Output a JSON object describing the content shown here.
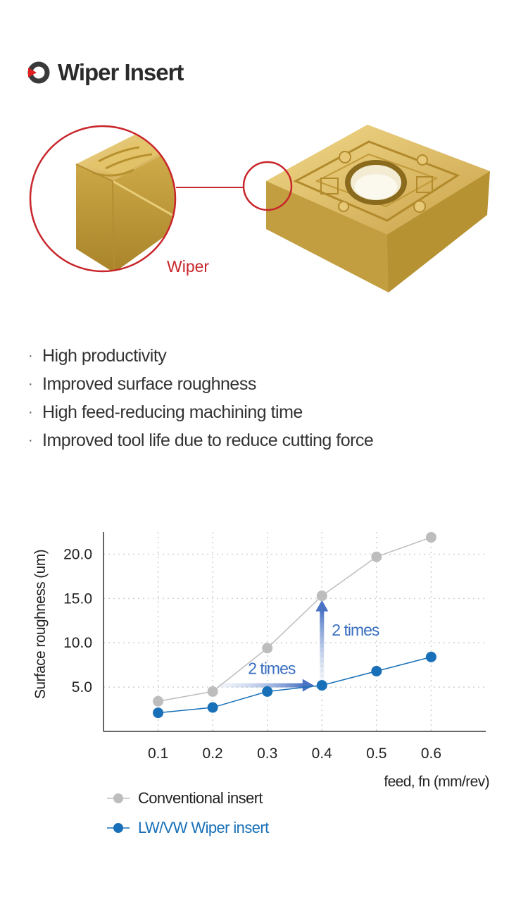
{
  "header": {
    "title": "Wiper Insert",
    "accent": "#e02020"
  },
  "hero": {
    "wiper_label": "Wiper",
    "label_color": "#c8262b",
    "circle_color": "#c8262b",
    "insert_color": "#d9b74e"
  },
  "features": [
    "High productivity",
    "Improved surface roughness",
    "High feed-reducing machining time",
    "Improved tool life due to reduce cutting force"
  ],
  "chart_data": {
    "type": "line",
    "x": [
      0.1,
      0.2,
      0.3,
      0.4,
      0.5,
      0.6
    ],
    "x_tick_labels": [
      "0.1",
      "0.2",
      "0.3",
      "0.4",
      "0.5",
      "0.6"
    ],
    "y_ticks": [
      5,
      10,
      15,
      20
    ],
    "y_tick_labels": [
      "5.0",
      "10.0",
      "15.0",
      "20.0"
    ],
    "xlim": [
      0,
      0.7
    ],
    "ylim": [
      0,
      22.5
    ],
    "xlabel": "feed, fn (mm/rev)",
    "ylabel": "Surface roughness (um)",
    "grid": true,
    "legend_position": "bottom-left",
    "series": [
      {
        "name": "Conventional insert",
        "values": [
          3.4,
          4.5,
          9.4,
          15.3,
          19.7,
          21.9
        ],
        "color": "#bdbdbd"
      },
      {
        "name": "LW/VW Wiper insert",
        "values": [
          2.1,
          2.7,
          4.5,
          5.2,
          6.8,
          8.4
        ],
        "color": "#1870b8"
      }
    ],
    "annotations": [
      {
        "text": "2 times",
        "from": [
          0.21,
          5.2
        ],
        "to": [
          0.38,
          5.2
        ],
        "direction": "horizontal"
      },
      {
        "text": "2 times",
        "from": [
          0.4,
          5.5
        ],
        "to": [
          0.4,
          14.5
        ],
        "direction": "vertical"
      }
    ]
  }
}
